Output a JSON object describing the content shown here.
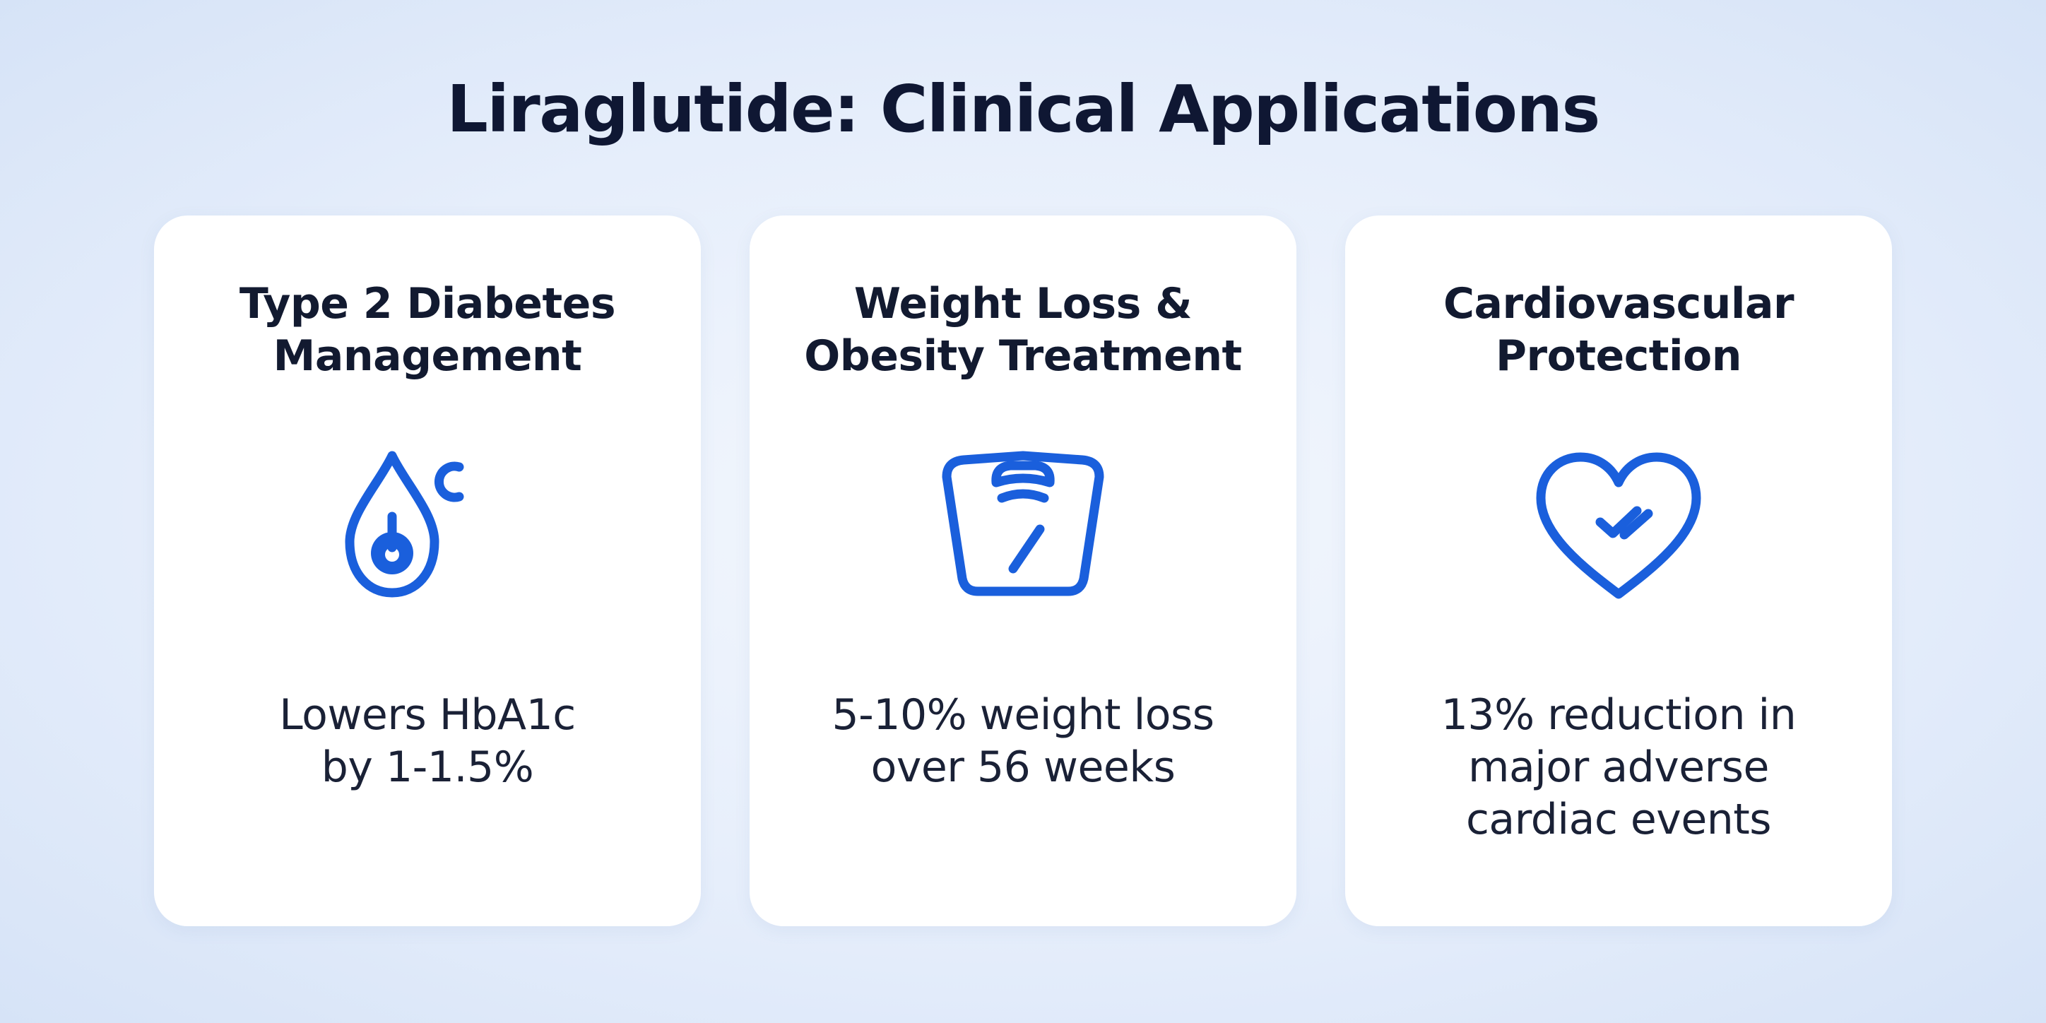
{
  "title": "Liraglutide: Clinical Applications",
  "accent_color": "#1a5fdc",
  "cards": [
    {
      "icon": "blood-drop-glucose-icon",
      "title_lines": [
        "Type 2 Diabetes",
        "Management"
      ],
      "desc_lines": [
        "Lowers HbA1c",
        "by 1-1.5%"
      ]
    },
    {
      "icon": "weighing-scale-icon",
      "title_lines": [
        "Weight Loss &",
        "Obesity Treatment"
      ],
      "desc_lines": [
        "5-10% weight loss",
        "over 56 weeks"
      ]
    },
    {
      "icon": "heart-check-icon",
      "title_lines": [
        "Cardiovascular",
        "Protection"
      ],
      "desc_lines": [
        "13% reduction in",
        "major adverse",
        "cardiac events"
      ]
    }
  ]
}
